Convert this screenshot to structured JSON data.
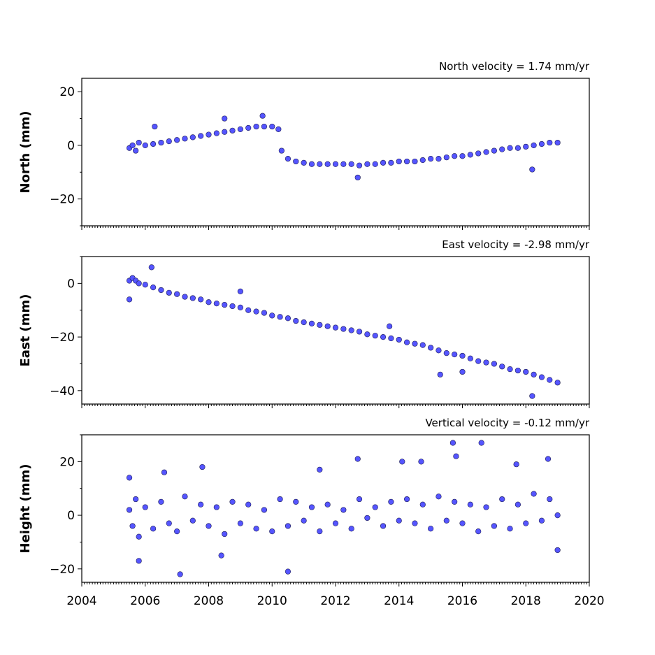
{
  "chart_data": [
    {
      "type": "scatter",
      "title": "North velocity = 1.74 mm/yr",
      "ylabel": "North (mm)",
      "xlabel": "",
      "xlim": [
        2004,
        2020
      ],
      "ylim": [
        -30,
        25
      ],
      "yticks": [
        -20,
        0,
        20
      ],
      "ytick_labels": [
        "−20",
        "0",
        "20"
      ],
      "xticks": [],
      "xtick_labels": [],
      "grid": false,
      "marker_color": "#5555ff",
      "series": [
        {
          "x": [
            2005.5,
            2005.6,
            2005.7,
            2005.8,
            2006.0,
            2006.25,
            2006.5,
            2006.75,
            2007.0,
            2007.25,
            2007.5,
            2007.75,
            2008.0,
            2008.25,
            2008.5,
            2008.75,
            2009.0,
            2009.25,
            2009.5,
            2009.75,
            2010.0,
            2010.2,
            2010.3,
            2010.5,
            2010.75,
            2011.0,
            2011.25,
            2011.5,
            2011.75,
            2012.0,
            2012.25,
            2012.5,
            2012.75,
            2013.0,
            2013.25,
            2013.5,
            2013.75,
            2014.0,
            2014.25,
            2014.5,
            2014.75,
            2015.0,
            2015.25,
            2015.5,
            2015.75,
            2016.0,
            2016.25,
            2016.5,
            2016.75,
            2017.0,
            2017.25,
            2017.5,
            2017.75,
            2018.0,
            2018.25,
            2018.5,
            2018.75,
            2019.0,
            2006.3,
            2008.5,
            2009.7,
            2012.7,
            2018.2
          ],
          "y": [
            -1,
            0,
            -2,
            1,
            0,
            0.5,
            1,
            1.5,
            2,
            2.5,
            3,
            3.5,
            4,
            4.5,
            5,
            5.5,
            6,
            6.5,
            7,
            7,
            7,
            6,
            -2,
            -5,
            -6,
            -6.5,
            -7,
            -7,
            -7,
            -7,
            -7,
            -7,
            -7.5,
            -7,
            -7,
            -6.5,
            -6.5,
            -6,
            -6,
            -6,
            -5.5,
            -5,
            -5,
            -4.5,
            -4,
            -4,
            -3.5,
            -3,
            -2.5,
            -2,
            -1.5,
            -1,
            -1,
            -0.5,
            0,
            0.5,
            1,
            1,
            7,
            10,
            11,
            -12,
            -9
          ]
        }
      ]
    },
    {
      "type": "scatter",
      "title": "East velocity = -2.98 mm/yr",
      "ylabel": "East (mm)",
      "xlabel": "",
      "xlim": [
        2004,
        2020
      ],
      "ylim": [
        -45,
        10
      ],
      "yticks": [
        -40,
        -20,
        0
      ],
      "ytick_labels": [
        "−40",
        "−20",
        "0"
      ],
      "xticks": [],
      "xtick_labels": [],
      "grid": false,
      "marker_color": "#5555ff",
      "series": [
        {
          "x": [
            2005.5,
            2005.6,
            2005.7,
            2005.8,
            2006.0,
            2006.25,
            2006.5,
            2006.75,
            2007.0,
            2007.25,
            2007.5,
            2007.75,
            2008.0,
            2008.25,
            2008.5,
            2008.75,
            2009.0,
            2009.25,
            2009.5,
            2009.75,
            2010.0,
            2010.25,
            2010.5,
            2010.75,
            2011.0,
            2011.25,
            2011.5,
            2011.75,
            2012.0,
            2012.25,
            2012.5,
            2012.75,
            2013.0,
            2013.25,
            2013.5,
            2013.75,
            2014.0,
            2014.25,
            2014.5,
            2014.75,
            2015.0,
            2015.25,
            2015.5,
            2015.75,
            2016.0,
            2016.25,
            2016.5,
            2016.75,
            2017.0,
            2017.25,
            2017.5,
            2017.75,
            2018.0,
            2018.25,
            2018.5,
            2018.75,
            2019.0,
            2006.2,
            2009.0,
            2013.7,
            2015.3,
            2016.0,
            2018.2,
            2005.5
          ],
          "y": [
            1,
            2,
            1,
            0,
            -0.5,
            -1.5,
            -2.5,
            -3.5,
            -4,
            -5,
            -5.5,
            -6,
            -7,
            -7.5,
            -8,
            -8.5,
            -9,
            -10,
            -10.5,
            -11,
            -12,
            -12.5,
            -13,
            -14,
            -14.5,
            -15,
            -15.5,
            -16,
            -16.5,
            -17,
            -17.5,
            -18,
            -19,
            -19.5,
            -20,
            -20.5,
            -21,
            -22,
            -22.5,
            -23,
            -24,
            -25,
            -26,
            -26.5,
            -27,
            -28,
            -29,
            -29.5,
            -30,
            -31,
            -32,
            -32.5,
            -33,
            -34,
            -35,
            -36,
            -37,
            6,
            -3,
            -16,
            -34,
            -33,
            -42,
            -6
          ]
        }
      ]
    },
    {
      "type": "scatter",
      "title": "Vertical velocity = -0.12 mm/yr",
      "ylabel": "Height (mm)",
      "xlabel": "",
      "xlim": [
        2004,
        2020
      ],
      "ylim": [
        -25,
        30
      ],
      "yticks": [
        -20,
        0,
        20
      ],
      "ytick_labels": [
        "−20",
        "0",
        "20"
      ],
      "xticks": [
        2004,
        2006,
        2008,
        2010,
        2012,
        2014,
        2016,
        2018,
        2020
      ],
      "xtick_labels": [
        "2004",
        "2006",
        "2008",
        "2010",
        "2012",
        "2014",
        "2016",
        "2018",
        "2020"
      ],
      "grid": false,
      "marker_color": "#5555ff",
      "series": [
        {
          "x": [
            2005.5,
            2005.6,
            2005.7,
            2005.8,
            2006.0,
            2006.25,
            2006.5,
            2006.75,
            2007.0,
            2007.25,
            2007.5,
            2007.75,
            2008.0,
            2008.25,
            2008.5,
            2008.75,
            2009.0,
            2009.25,
            2009.5,
            2009.75,
            2010.0,
            2010.25,
            2010.5,
            2010.75,
            2011.0,
            2011.25,
            2011.5,
            2011.75,
            2012.0,
            2012.25,
            2012.5,
            2012.75,
            2013.0,
            2013.25,
            2013.5,
            2013.75,
            2014.0,
            2014.25,
            2014.5,
            2014.75,
            2015.0,
            2015.25,
            2015.5,
            2015.75,
            2016.0,
            2016.25,
            2016.5,
            2016.75,
            2017.0,
            2017.25,
            2017.5,
            2017.75,
            2018.0,
            2018.25,
            2018.5,
            2018.75,
            2019.0,
            2005.5,
            2005.8,
            2006.6,
            2007.1,
            2007.8,
            2008.4,
            2010.5,
            2011.5,
            2012.7,
            2014.1,
            2014.7,
            2015.7,
            2015.8,
            2016.6,
            2017.7,
            2018.7,
            2019.0
          ],
          "y": [
            2,
            -4,
            6,
            -8,
            3,
            -5,
            5,
            -3,
            -6,
            7,
            -2,
            4,
            -4,
            3,
            -7,
            5,
            -3,
            4,
            -5,
            2,
            -6,
            6,
            -4,
            5,
            -2,
            3,
            -6,
            4,
            -3,
            2,
            -5,
            6,
            -1,
            3,
            -4,
            5,
            -2,
            6,
            -3,
            4,
            -5,
            7,
            -2,
            5,
            -3,
            4,
            -6,
            3,
            -4,
            6,
            -5,
            4,
            -3,
            8,
            -2,
            6,
            0,
            14,
            -17,
            16,
            -22,
            18,
            -15,
            -21,
            17,
            21,
            20,
            20,
            27,
            22,
            27,
            19,
            21,
            -13
          ]
        }
      ]
    }
  ]
}
